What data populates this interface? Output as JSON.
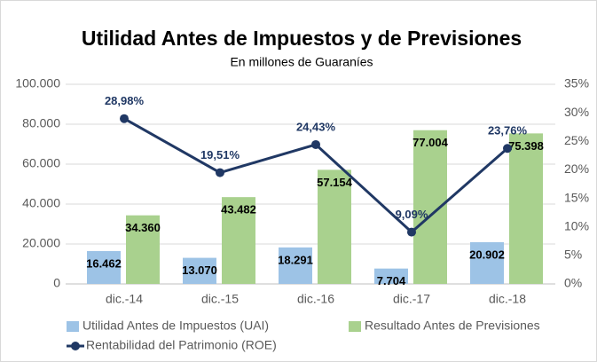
{
  "chart_data": {
    "type": "bar",
    "title": "Utilidad Antes de Impuestos y de Previsiones",
    "subtitle": "En millones de Guaraníes",
    "categories": [
      "dic.-14",
      "dic.-15",
      "dic.-16",
      "dic.-17",
      "dic.-18"
    ],
    "series": [
      {
        "name": "Utilidad Antes de Impuestos (UAI)",
        "type": "bar",
        "color": "#9dc3e6",
        "values": [
          16462,
          13070,
          18291,
          7704,
          20902
        ],
        "value_labels": [
          "16.462",
          "13.070",
          "18.291",
          "7.704",
          "20.902"
        ]
      },
      {
        "name": "Resultado Antes de Previsiones",
        "type": "bar",
        "color": "#a9d18e",
        "values": [
          34360,
          43482,
          57154,
          77004,
          75398
        ],
        "value_labels": [
          "34.360",
          "43.482",
          "57.154",
          "77.004",
          "75.398"
        ]
      },
      {
        "name": "Rentabilidad del Patrimonio (ROE)",
        "type": "line",
        "axis": "y2",
        "color": "#203864",
        "values": [
          28.98,
          19.51,
          24.43,
          9.09,
          23.76
        ],
        "value_labels": [
          "28,98%",
          "19,51%",
          "24,43%",
          "9,09%",
          "23,76%"
        ]
      }
    ],
    "ylim": [
      0,
      100000
    ],
    "yticks": [
      0,
      {
        "value": 20000,
        "label": "20.000"
      },
      {
        "value": 40000,
        "label": "40.000"
      },
      {
        "value": 60000,
        "label": "60.000"
      },
      {
        "value": 80000,
        "label": "80.000"
      },
      {
        "value": 100000,
        "label": "100.000"
      }
    ],
    "y2lim": [
      0,
      35
    ],
    "y2ticks": [
      {
        "value": 0,
        "label": "0%"
      },
      {
        "value": 5,
        "label": "5%"
      },
      {
        "value": 10,
        "label": "10%"
      },
      {
        "value": 15,
        "label": "15%"
      },
      {
        "value": 20,
        "label": "20%"
      },
      {
        "value": 25,
        "label": "25%"
      },
      {
        "value": 30,
        "label": "30%"
      },
      {
        "value": 35,
        "label": "35%"
      }
    ],
    "grid": true
  }
}
